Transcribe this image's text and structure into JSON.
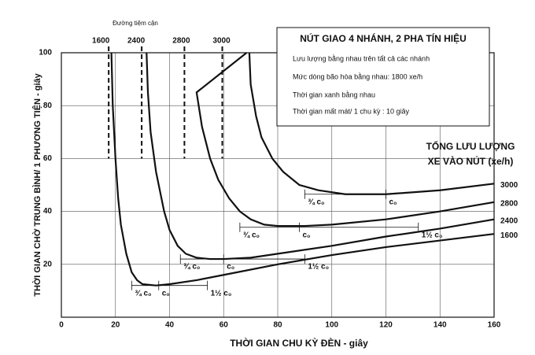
{
  "chart_data": {
    "type": "line",
    "xlabel": "THỜI GIAN CHU KỲ ĐÈN - giây",
    "ylabel": "THỜI GIAN CHỜ TRUNG BÌNH/ 1 PHƯƠNG TIỆN - giây",
    "xlim": [
      0,
      160
    ],
    "ylim": [
      0,
      100
    ],
    "xticks": [
      0,
      20,
      40,
      60,
      80,
      100,
      120,
      140,
      160
    ],
    "yticks": [
      20,
      40,
      60,
      80,
      100
    ],
    "grid": true,
    "asymptote_label": "Đường tiệm cận",
    "legend_title": [
      "TỔNG LƯU LƯỢNG",
      "XE VÀO NÚT (xe/h)"
    ],
    "info_box": {
      "title": "NÚT GIAO 4 NHÁNH, 2 PHA TÍN HIỆU",
      "lines": [
        "Lưu lượng bằng nhau trên tất cả các nhánh",
        "Mức dòng bão hòa bằng nhau: 1800 xe/h",
        "Thời gian xanh bằng nhau",
        "Thời gian mất mát/ 1 chu kỳ : 10 giây"
      ]
    },
    "series": [
      {
        "name": "1600",
        "color": "#111111",
        "asymptote": 17.5,
        "x": [
          18.5,
          19,
          20,
          21,
          22,
          24,
          26,
          28,
          30,
          35,
          40,
          50,
          60,
          80,
          100,
          120,
          140,
          160
        ],
        "values": [
          100,
          80,
          60,
          45,
          35,
          24,
          17,
          14,
          12.5,
          12,
          12.5,
          14,
          16,
          20,
          23.5,
          26.5,
          29,
          31.5
        ],
        "marker_level": 12,
        "markers": [
          {
            "x": 26,
            "label": "¾ c₀"
          },
          {
            "x": 36,
            "label": "c₀"
          },
          {
            "x": 54,
            "label": "1½ c₀"
          }
        ]
      },
      {
        "name": "2400",
        "color": "#111111",
        "asymptote": 29.7,
        "x": [
          31.5,
          32,
          33,
          35,
          38,
          40,
          43,
          46,
          50,
          55,
          60,
          70,
          80,
          100,
          120,
          140,
          160
        ],
        "values": [
          100,
          85,
          70,
          55,
          40,
          33,
          27,
          24,
          22.5,
          22,
          22,
          22.5,
          24,
          27,
          30.5,
          33.5,
          37
        ],
        "marker_level": 22,
        "markers": [
          {
            "x": 44,
            "label": "¾ c₀"
          },
          {
            "x": 60,
            "label": "c₀"
          },
          {
            "x": 90,
            "label": "1½ c₀"
          }
        ]
      },
      {
        "name": "2800",
        "color": "#111111",
        "asymptote": 45.5,
        "x": [
          68.5,
          50,
          52,
          55,
          58,
          62,
          66,
          70,
          75,
          80,
          90,
          100,
          120,
          140,
          160
        ],
        "values": [
          100,
          85,
          72,
          60,
          52,
          45,
          40,
          37,
          35,
          34.5,
          34.5,
          35,
          37,
          40,
          43.5
        ],
        "marker_level": 34,
        "markers": [
          {
            "x": 66,
            "label": "¾ c₀"
          },
          {
            "x": 88,
            "label": "c₀"
          },
          {
            "x": 132,
            "label": "1½ c₀"
          }
        ]
      },
      {
        "name": "3000",
        "color": "#111111",
        "asymptote": 59.5,
        "x": [
          69.5,
          70,
          72,
          74,
          78,
          82,
          88,
          95,
          105,
          120,
          140,
          160
        ],
        "values": [
          100,
          88,
          76,
          68,
          60,
          55,
          50,
          48,
          46.5,
          46.5,
          48,
          50.5
        ],
        "marker_level": 46.5,
        "markers": [
          {
            "x": 90,
            "label": "¾ c₀"
          },
          {
            "x": 120,
            "label": "c₀"
          }
        ]
      }
    ]
  }
}
